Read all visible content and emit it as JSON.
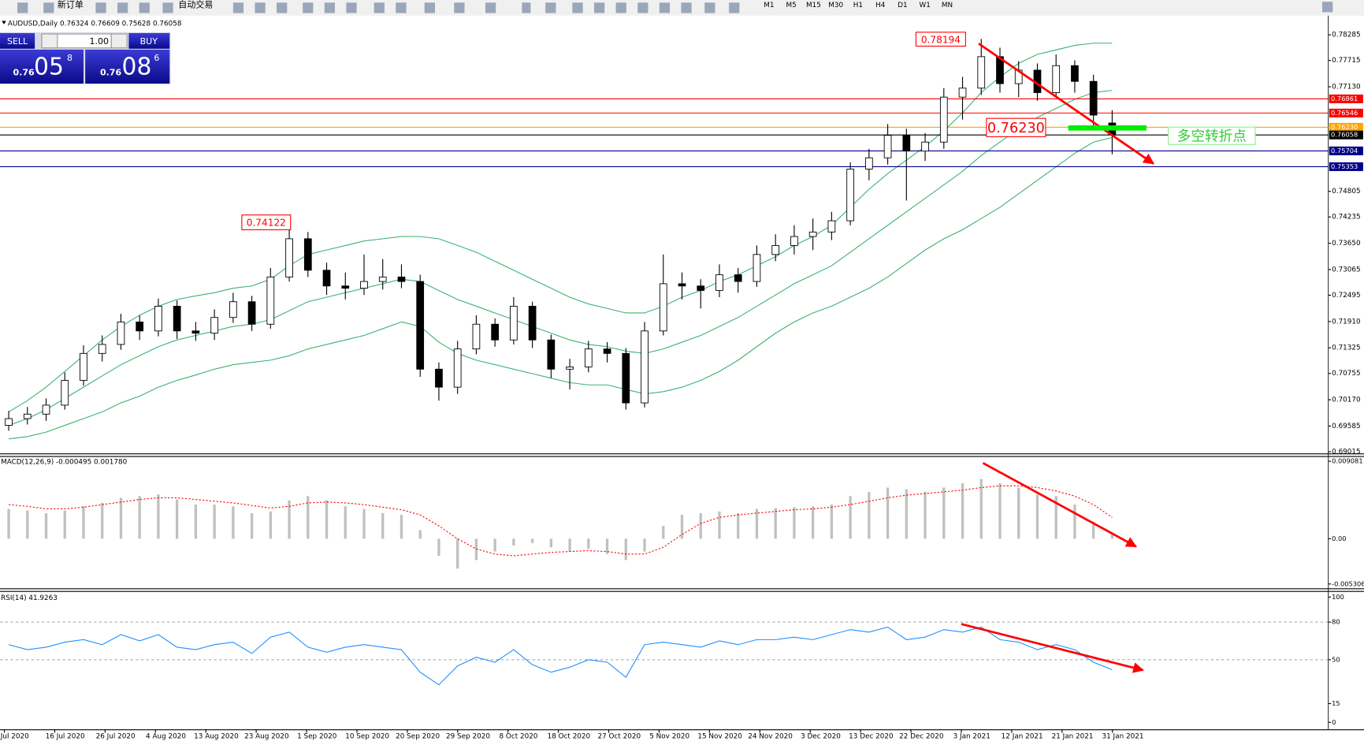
{
  "toolbar": {
    "new_order": "新订单",
    "auto_trading": "自动交易",
    "timeframes": [
      "M1",
      "M5",
      "M15",
      "M30",
      "H1",
      "H4",
      "D1",
      "W1",
      "MN"
    ]
  },
  "one_click": {
    "sell": "SELL",
    "lots": "1.00",
    "buy": "BUY",
    "sell_price": {
      "big": "0.76",
      "mid": "05",
      "small": "8"
    },
    "buy_price": {
      "big": "0.76",
      "mid": "08",
      "small": "6"
    }
  },
  "chart_data": [
    {
      "type": "candlestick",
      "title": "AUDUSD,Daily  0.76324 0.76609 0.75628 0.76058",
      "open": [
        0.696,
        0.6975,
        0.6985,
        0.7005,
        0.706,
        0.712,
        0.714,
        0.719,
        0.717,
        0.7225,
        0.717,
        0.7165,
        0.72,
        0.7235,
        0.7185,
        0.729,
        0.7375,
        0.7305,
        0.727,
        0.7265,
        0.728,
        0.729,
        0.728,
        0.7085,
        0.7045,
        0.713,
        0.7185,
        0.715,
        0.7225,
        0.715,
        0.7085,
        0.709,
        0.713,
        0.712,
        0.701,
        0.717,
        0.7275,
        0.727,
        0.726,
        0.7295,
        0.728,
        0.734,
        0.736,
        0.738,
        0.739,
        0.7415,
        0.753,
        0.7555,
        0.7605,
        0.757,
        0.759,
        0.769,
        0.771,
        0.778,
        0.772,
        0.775,
        0.77,
        0.776,
        0.7725,
        0.76324
      ],
      "high": [
        0.6992,
        0.7001,
        0.702,
        0.7078,
        0.7138,
        0.716,
        0.7208,
        0.7205,
        0.7242,
        0.7238,
        0.719,
        0.7218,
        0.7255,
        0.7248,
        0.731,
        0.74122,
        0.739,
        0.7322,
        0.73,
        0.734,
        0.733,
        0.7318,
        0.7295,
        0.71,
        0.7148,
        0.7205,
        0.7198,
        0.7245,
        0.7235,
        0.7162,
        0.7108,
        0.7148,
        0.7145,
        0.7132,
        0.719,
        0.734,
        0.73,
        0.7285,
        0.7318,
        0.731,
        0.736,
        0.7385,
        0.7405,
        0.742,
        0.7435,
        0.7545,
        0.7575,
        0.763,
        0.762,
        0.761,
        0.771,
        0.7735,
        0.78194,
        0.78,
        0.777,
        0.7765,
        0.7785,
        0.7772,
        0.774,
        0.76609
      ],
      "low": [
        0.6948,
        0.6962,
        0.697,
        0.6995,
        0.7048,
        0.7102,
        0.7128,
        0.715,
        0.7158,
        0.7152,
        0.7148,
        0.715,
        0.7188,
        0.717,
        0.7175,
        0.728,
        0.729,
        0.725,
        0.724,
        0.725,
        0.7262,
        0.7265,
        0.7068,
        0.7015,
        0.703,
        0.7118,
        0.7135,
        0.714,
        0.7132,
        0.7065,
        0.704,
        0.7078,
        0.71,
        0.6995,
        0.7,
        0.716,
        0.724,
        0.722,
        0.7245,
        0.7255,
        0.7268,
        0.7325,
        0.734,
        0.735,
        0.7372,
        0.7405,
        0.7505,
        0.754,
        0.746,
        0.7548,
        0.7575,
        0.764,
        0.7695,
        0.77,
        0.769,
        0.7682,
        0.769,
        0.77,
        0.762,
        0.75628
      ],
      "close": [
        0.6975,
        0.6985,
        0.7005,
        0.706,
        0.712,
        0.714,
        0.719,
        0.717,
        0.7225,
        0.717,
        0.7165,
        0.72,
        0.7235,
        0.7185,
        0.729,
        0.7375,
        0.7305,
        0.727,
        0.7265,
        0.728,
        0.729,
        0.728,
        0.7085,
        0.7045,
        0.713,
        0.7185,
        0.715,
        0.7225,
        0.715,
        0.7085,
        0.709,
        0.713,
        0.712,
        0.701,
        0.717,
        0.7275,
        0.727,
        0.726,
        0.7295,
        0.728,
        0.734,
        0.736,
        0.738,
        0.739,
        0.7415,
        0.753,
        0.7555,
        0.7605,
        0.757,
        0.759,
        0.769,
        0.771,
        0.778,
        0.772,
        0.775,
        0.77,
        0.776,
        0.7725,
        0.765,
        0.76058
      ],
      "up_color": "#ffffff",
      "down_color": "#000000",
      "bands": {
        "color": "#3cb371",
        "upper": [
          0.699,
          0.7015,
          0.7045,
          0.708,
          0.7115,
          0.715,
          0.718,
          0.7205,
          0.7225,
          0.724,
          0.7248,
          0.7255,
          0.7265,
          0.727,
          0.7285,
          0.7315,
          0.734,
          0.735,
          0.736,
          0.737,
          0.7375,
          0.738,
          0.738,
          0.7375,
          0.736,
          0.7345,
          0.7325,
          0.7305,
          0.7285,
          0.7265,
          0.7245,
          0.723,
          0.722,
          0.721,
          0.721,
          0.7225,
          0.7245,
          0.726,
          0.728,
          0.7295,
          0.7315,
          0.7335,
          0.736,
          0.738,
          0.7405,
          0.7445,
          0.7485,
          0.752,
          0.755,
          0.758,
          0.7615,
          0.7655,
          0.77,
          0.7735,
          0.7765,
          0.7785,
          0.7795,
          0.7805,
          0.781,
          0.781
        ],
        "middle": [
          0.696,
          0.6975,
          0.6995,
          0.702,
          0.7045,
          0.707,
          0.7095,
          0.7115,
          0.7135,
          0.715,
          0.716,
          0.717,
          0.718,
          0.7185,
          0.7195,
          0.7215,
          0.7235,
          0.7245,
          0.7255,
          0.7265,
          0.7275,
          0.7285,
          0.728,
          0.726,
          0.724,
          0.7225,
          0.721,
          0.7195,
          0.718,
          0.7165,
          0.715,
          0.714,
          0.7135,
          0.7125,
          0.712,
          0.713,
          0.7145,
          0.716,
          0.718,
          0.72,
          0.7225,
          0.725,
          0.7275,
          0.7295,
          0.7315,
          0.7345,
          0.7375,
          0.7405,
          0.7435,
          0.7465,
          0.7495,
          0.7525,
          0.756,
          0.759,
          0.762,
          0.7645,
          0.7665,
          0.7685,
          0.77,
          0.7705
        ],
        "lower": [
          0.693,
          0.6935,
          0.6945,
          0.696,
          0.6975,
          0.699,
          0.701,
          0.7025,
          0.7045,
          0.706,
          0.7072,
          0.7085,
          0.7095,
          0.71,
          0.7105,
          0.7115,
          0.713,
          0.714,
          0.715,
          0.716,
          0.7175,
          0.719,
          0.718,
          0.7145,
          0.712,
          0.7105,
          0.7095,
          0.7085,
          0.7075,
          0.7065,
          0.7055,
          0.705,
          0.705,
          0.704,
          0.703,
          0.7035,
          0.7045,
          0.706,
          0.708,
          0.7105,
          0.7135,
          0.7165,
          0.719,
          0.721,
          0.7225,
          0.7245,
          0.7265,
          0.729,
          0.732,
          0.735,
          0.7375,
          0.7395,
          0.742,
          0.7445,
          0.7475,
          0.7505,
          0.7535,
          0.7565,
          0.759,
          0.76
        ]
      },
      "ylim": [
        0.68976,
        0.78537
      ],
      "yticks": [
        0.78285,
        0.77715,
        {
          "value": 0.7713,
          "label": "0.77130"
        },
        0.74805,
        0.74235,
        {
          "value": 0.7365,
          "label": "0.73650"
        },
        0.73065,
        0.72495,
        {
          "value": 0.7191,
          "label": "0.71910"
        },
        0.71325,
        0.70755,
        {
          "value": 0.7017,
          "label": "0.70170"
        },
        0.69585,
        0.69015
      ],
      "levels": [
        {
          "value": 0.76861,
          "color": "#ff0000"
        },
        {
          "value": 0.76546,
          "color": "#ff0000"
        },
        {
          "value": 0.7623,
          "label": "0.76230",
          "color": "#ffa500"
        },
        {
          "value": 0.76058,
          "color": "#000000"
        },
        {
          "value": 0.75704,
          "color": "#00008b"
        },
        {
          "value": 0.75353,
          "color": "#00008b"
        }
      ],
      "annotations": [
        {
          "text": "0.78194"
        },
        {
          "text": "0.74122"
        },
        {
          "text": "0.76230"
        },
        {
          "text": "多空转折点"
        }
      ]
    },
    {
      "type": "macd",
      "label": "MACD(12,26,9) -0.000495 0.001780",
      "histogram": [
        0.0035,
        0.0033,
        0.003,
        0.0033,
        0.0038,
        0.0042,
        0.0048,
        0.005,
        0.0052,
        0.0046,
        0.004,
        0.004,
        0.0038,
        0.003,
        0.0032,
        0.0045,
        0.005,
        0.0045,
        0.0038,
        0.0035,
        0.003,
        0.0028,
        0.001,
        -0.002,
        -0.0035,
        -0.0025,
        -0.0015,
        -0.0008,
        -0.0005,
        -0.001,
        -0.0015,
        -0.0012,
        -0.0018,
        -0.0025,
        -0.0015,
        0.0015,
        0.0028,
        0.003,
        0.0032,
        0.003,
        0.0035,
        0.0036,
        0.0037,
        0.0038,
        0.004,
        0.005,
        0.0055,
        0.006,
        0.0058,
        0.0055,
        0.006,
        0.0065,
        0.007,
        0.0065,
        0.006,
        0.0052,
        0.005,
        0.004,
        0.002,
        0.0005
      ],
      "signal": [
        0.004,
        0.0038,
        0.0035,
        0.0035,
        0.0037,
        0.004,
        0.0043,
        0.0046,
        0.0048,
        0.0048,
        0.0046,
        0.0044,
        0.0042,
        0.0039,
        0.0036,
        0.0038,
        0.0042,
        0.0043,
        0.0042,
        0.004,
        0.0037,
        0.0034,
        0.0028,
        0.0015,
        0.0,
        -0.0012,
        -0.0018,
        -0.002,
        -0.0018,
        -0.0016,
        -0.0015,
        -0.0014,
        -0.0015,
        -0.0018,
        -0.0018,
        -0.001,
        0.0005,
        0.0018,
        0.0025,
        0.0028,
        0.003,
        0.0032,
        0.0034,
        0.0035,
        0.0037,
        0.004,
        0.0044,
        0.0048,
        0.0051,
        0.0053,
        0.0055,
        0.0057,
        0.006,
        0.0062,
        0.0062,
        0.006,
        0.0056,
        0.005,
        0.004,
        0.0025
      ],
      "histogram_color": "#c0c0c0",
      "signal_color": "#ff0000",
      "ylim": [
        -0.005306,
        0.009081
      ],
      "yticks": [
        0.009081,
        {
          "value": 0,
          "label": "0.00"
        },
        -0.005306
      ]
    },
    {
      "type": "line",
      "label": "RSI(14) 41.9263",
      "values": [
        62,
        58,
        60,
        64,
        66,
        62,
        70,
        65,
        70,
        60,
        58,
        62,
        64,
        55,
        68,
        72,
        60,
        56,
        60,
        62,
        60,
        58,
        40,
        30,
        45,
        52,
        48,
        58,
        46,
        40,
        44,
        50,
        48,
        36,
        62,
        64,
        62,
        60,
        65,
        62,
        66,
        66,
        68,
        66,
        70,
        74,
        72,
        76,
        66,
        68,
        74,
        72,
        76,
        66,
        64,
        58,
        62,
        58,
        48,
        42
      ],
      "color": "#1e90ff",
      "ylim": [
        0,
        100
      ],
      "yticks": [
        100,
        80,
        50,
        15,
        0
      ],
      "dashed_levels": [
        80,
        50
      ],
      "x_labels": [
        "Jul 2020",
        "16 Jul 2020",
        "26 Jul 2020",
        "4 Aug 2020",
        "13 Aug 2020",
        "23 Aug 2020",
        "1 Sep 2020",
        "10 Sep 2020",
        "20 Sep 2020",
        "29 Sep 2020",
        "8 Oct 2020",
        "18 Oct 2020",
        "27 Oct 2020",
        "5 Nov 2020",
        "15 Nov 2020",
        "24 Nov 2020",
        "3 Dec 2020",
        "13 Dec 2020",
        "22 Dec 2020",
        "3 Jan 2021",
        "12 Jan 2021",
        "21 Jan 2021",
        "31 Jan 2021"
      ]
    }
  ]
}
